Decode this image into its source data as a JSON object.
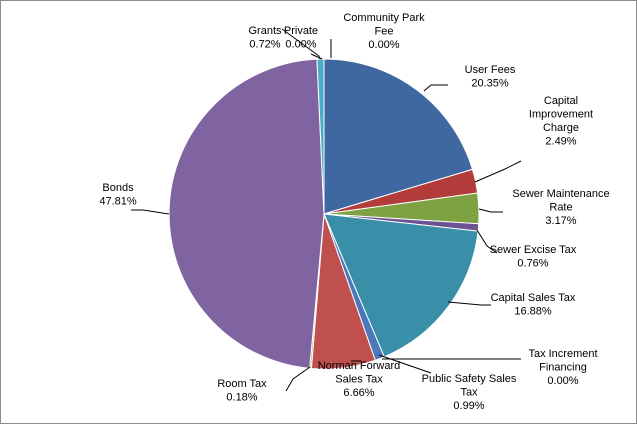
{
  "chart_data": {
    "type": "pie",
    "title": "",
    "start_angle_deg": 0,
    "direction": "clockwise",
    "slices": [
      {
        "label": "User Fees",
        "value": 20.35,
        "value_label": "20.35%",
        "color": "#3f67a0"
      },
      {
        "label": "Capital Improvement Charge",
        "value": 2.49,
        "value_label": "2.49%",
        "color": "#b23c3a"
      },
      {
        "label": "Sewer Maintenance Rate",
        "value": 3.17,
        "value_label": "3.17%",
        "color": "#7ea141"
      },
      {
        "label": "Sewer Excise Tax",
        "value": 0.76,
        "value_label": "0.76%",
        "color": "#6b5292"
      },
      {
        "label": "Capital Sales Tax",
        "value": 16.88,
        "value_label": "16.88%",
        "color": "#3a8fa8"
      },
      {
        "label": "Tax Increment Financing",
        "value": 0.0,
        "value_label": "0.00%",
        "color": "#d47f2d"
      },
      {
        "label": "Public Safety Sales Tax",
        "value": 0.99,
        "value_label": "0.99%",
        "color": "#4a78b8"
      },
      {
        "label": "Norman Forward Sales Tax",
        "value": 6.66,
        "value_label": "6.66%",
        "color": "#c0504d"
      },
      {
        "label": "Room Tax",
        "value": 0.18,
        "value_label": "0.18%",
        "color": "#9bbb59"
      },
      {
        "label": "Bonds",
        "value": 47.81,
        "value_label": "47.81%",
        "color": "#8064a2"
      },
      {
        "label": "Grants",
        "value": 0.72,
        "value_label": "0.72%",
        "color": "#4bacc6"
      },
      {
        "label": "Private",
        "value": 0.0,
        "value_label": "0.00%",
        "color": "#f79646"
      },
      {
        "label": "Community Park Fee",
        "value": 0.0,
        "value_label": "0.00%",
        "color": "#2c4d7a"
      }
    ]
  }
}
